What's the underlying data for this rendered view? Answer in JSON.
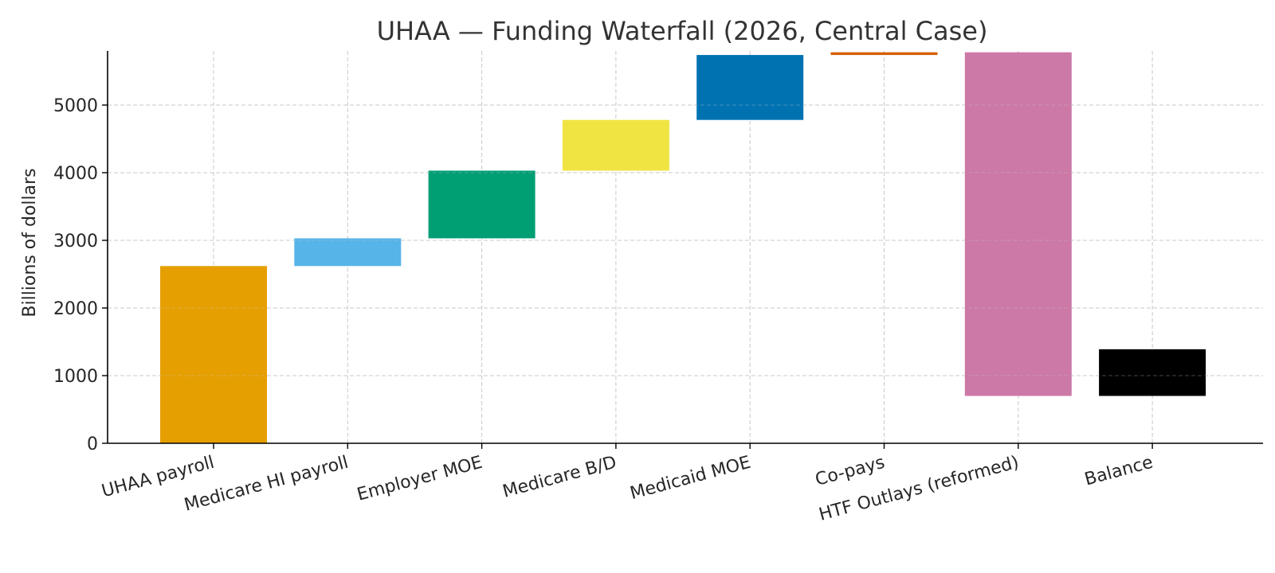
{
  "chart_data": {
    "type": "bar",
    "title": "UHAA — Funding Waterfall (2026, Central Case)",
    "xlabel": "",
    "ylabel": "Billions of dollars",
    "ylim": [
      0,
      5800
    ],
    "yticks": [
      0,
      1000,
      2000,
      3000,
      4000,
      5000
    ],
    "grid": true,
    "categories": [
      "UHAA payroll",
      "Medicare HI payroll",
      "Employer MOE",
      "Medicare B/D",
      "Medicaid MOE",
      "Co-pays",
      "HTF Outlays (reformed)",
      "Balance"
    ],
    "bars": [
      {
        "category": "UHAA payroll",
        "start": 0,
        "end": 2620,
        "color": "#E69F00"
      },
      {
        "category": "Medicare HI payroll",
        "start": 2620,
        "end": 3030,
        "color": "#56B4E9"
      },
      {
        "category": "Employer MOE",
        "start": 3030,
        "end": 4030,
        "color": "#009E73"
      },
      {
        "category": "Medicare B/D",
        "start": 4030,
        "end": 4780,
        "color": "#F0E442"
      },
      {
        "category": "Medicaid MOE",
        "start": 4780,
        "end": 5740,
        "color": "#0072B2"
      },
      {
        "category": "Co-pays",
        "start": 5740,
        "end": 5780,
        "color": "#D55E00"
      },
      {
        "category": "HTF Outlays (reformed)",
        "start": 5780,
        "end": 700,
        "color": "#CC79A7"
      },
      {
        "category": "Balance",
        "start": 700,
        "end": 1390,
        "color": "#000000"
      }
    ]
  }
}
